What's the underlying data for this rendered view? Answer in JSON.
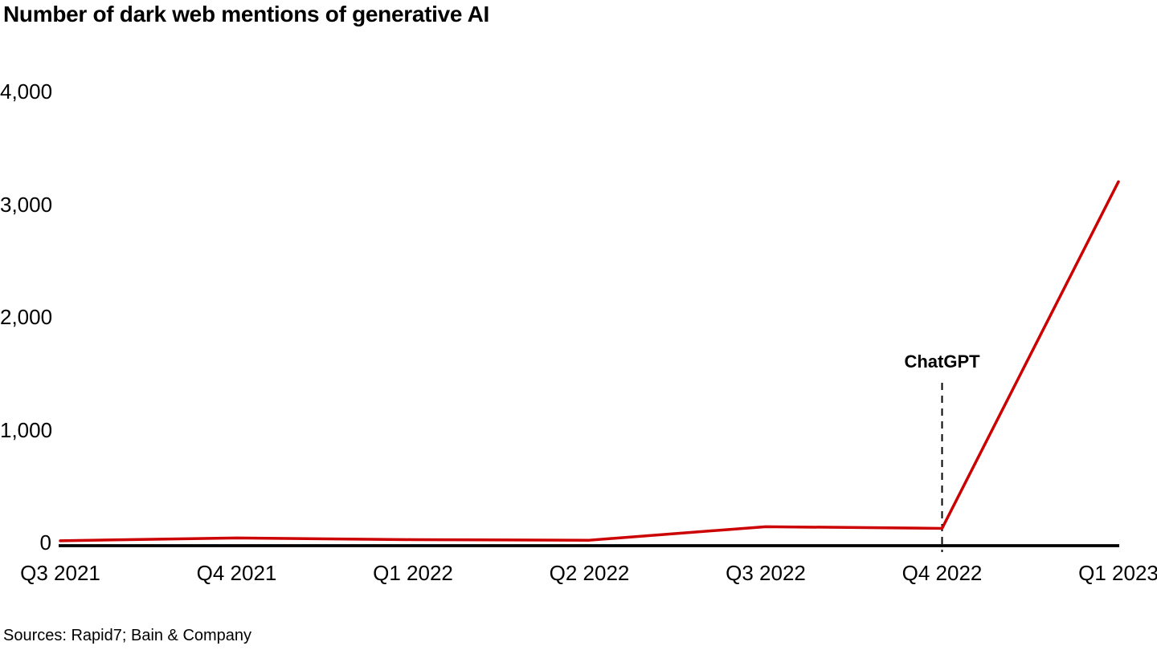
{
  "title": "Number of dark web mentions of generative AI",
  "source_note": "Sources: Rapid7; Bain & Company",
  "colors": {
    "line": "#cc0000",
    "axis": "#000000",
    "annotation_line": "#000000",
    "text": "#000000",
    "background": "#ffffff"
  },
  "chart_data": {
    "type": "line",
    "title": "Number of dark web mentions of generative AI",
    "categories": [
      "Q3 2021",
      "Q4 2021",
      "Q1 2022",
      "Q2 2022",
      "Q3 2022",
      "Q4 2022",
      "Q1 2023"
    ],
    "series": [
      {
        "name": "Dark web mentions of generative AI",
        "color": "#cc0000",
        "values": [
          15,
          40,
          25,
          20,
          140,
          125,
          3200
        ]
      }
    ],
    "xlabel": "",
    "ylabel": "",
    "ylim": [
      0,
      4000
    ],
    "yticks": [
      {
        "value": 0,
        "label": "0"
      },
      {
        "value": 1000,
        "label": "1,000"
      },
      {
        "value": 2000,
        "label": "2,000"
      },
      {
        "value": 3000,
        "label": "3,000"
      },
      {
        "value": 4000,
        "label": "4,000"
      }
    ],
    "grid": false,
    "legend": false,
    "annotations": [
      {
        "text": "ChatGPT",
        "x": "Q4 2022",
        "style": "dashed-vertical-line"
      }
    ]
  }
}
